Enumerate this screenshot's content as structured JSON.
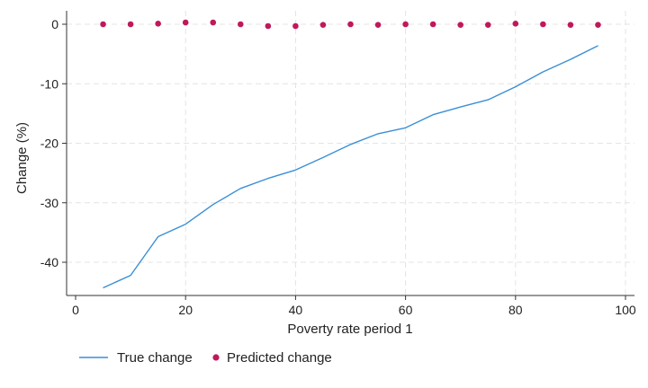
{
  "chart_data": {
    "type": "line",
    "xlabel": "Poverty rate period 1",
    "ylabel": "Change (%)",
    "xlim": [
      0,
      100
    ],
    "ylim": [
      -45,
      0
    ],
    "xticks": [
      0,
      20,
      40,
      60,
      80,
      100
    ],
    "yticks": [
      0,
      -10,
      -20,
      -30,
      -40
    ],
    "grid": true,
    "legend_position": "bottom-left",
    "x": [
      5,
      10,
      15,
      20,
      25,
      30,
      35,
      40,
      45,
      50,
      55,
      60,
      65,
      70,
      75,
      80,
      85,
      90,
      95
    ],
    "series": [
      {
        "name": "True change",
        "type": "line",
        "color": "#3a8fd6",
        "values": [
          -44.3,
          -42.2,
          -35.7,
          -33.6,
          -30.3,
          -27.6,
          -25.9,
          -24.5,
          -22.4,
          -20.2,
          -18.4,
          -17.4,
          -15.2,
          -13.9,
          -12.7,
          -10.5,
          -8.0,
          -5.9,
          -3.6
        ]
      },
      {
        "name": "Predicted change",
        "type": "scatter",
        "color": "#c1185b",
        "values": [
          0.0,
          0.0,
          0.1,
          0.3,
          0.3,
          0.0,
          -0.3,
          -0.3,
          -0.1,
          0.0,
          -0.1,
          0.0,
          0.0,
          -0.1,
          -0.1,
          0.1,
          0.0,
          -0.1,
          -0.1
        ]
      }
    ]
  }
}
